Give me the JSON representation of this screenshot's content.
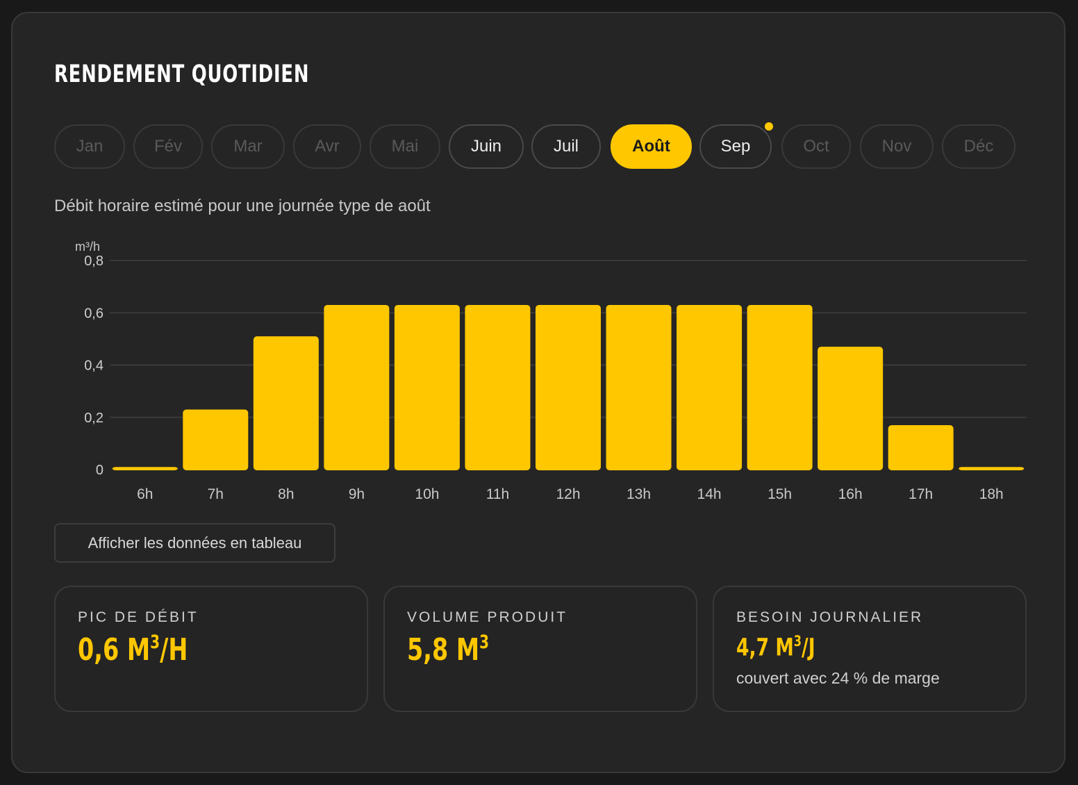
{
  "header": {
    "title": "RENDEMENT QUOTIDIEN"
  },
  "months": [
    {
      "label": "Jan",
      "state": "disabled"
    },
    {
      "label": "Fév",
      "state": "disabled"
    },
    {
      "label": "Mar",
      "state": "disabled"
    },
    {
      "label": "Avr",
      "state": "disabled"
    },
    {
      "label": "Mai",
      "state": "disabled"
    },
    {
      "label": "Juin",
      "state": "available"
    },
    {
      "label": "Juil",
      "state": "available"
    },
    {
      "label": "Août",
      "state": "selected"
    },
    {
      "label": "Sep",
      "state": "available",
      "indicator": true
    },
    {
      "label": "Oct",
      "state": "disabled"
    },
    {
      "label": "Nov",
      "state": "disabled"
    },
    {
      "label": "Déc",
      "state": "disabled"
    }
  ],
  "subtitle": "Débit horaire estimé pour une journée type de août",
  "chart_data": {
    "type": "bar",
    "ylabel": "m³/h",
    "ylim": [
      0,
      0.8
    ],
    "yticks": [
      0,
      0.2,
      0.4,
      0.6,
      0.8
    ],
    "ytick_labels": [
      "0",
      "0,2",
      "0,4",
      "0,6",
      "0,8"
    ],
    "categories": [
      "6h",
      "7h",
      "8h",
      "9h",
      "10h",
      "11h",
      "12h",
      "13h",
      "14h",
      "15h",
      "16h",
      "17h",
      "18h"
    ],
    "values": [
      0.01,
      0.23,
      0.51,
      0.63,
      0.63,
      0.63,
      0.63,
      0.63,
      0.63,
      0.63,
      0.47,
      0.17,
      0.01
    ],
    "grid": true,
    "bar_color": "#ffc700"
  },
  "table_button": {
    "label": "Afficher les données en tableau"
  },
  "stats": {
    "peak": {
      "label": "PIC DE DÉBIT",
      "value_main": "0,6 M",
      "value_sup": "3",
      "value_tail": "/H"
    },
    "volume": {
      "label": "VOLUME PRODUIT",
      "value_main": "5,8 M",
      "value_sup": "3",
      "value_tail": ""
    },
    "need": {
      "label": "BESOIN JOURNALIER",
      "value_main": "4,7 M",
      "value_sup": "3",
      "value_tail": "/J",
      "note": "couvert avec 24 % de marge"
    }
  },
  "colors": {
    "accent": "#ffc700",
    "background": "#252525"
  }
}
